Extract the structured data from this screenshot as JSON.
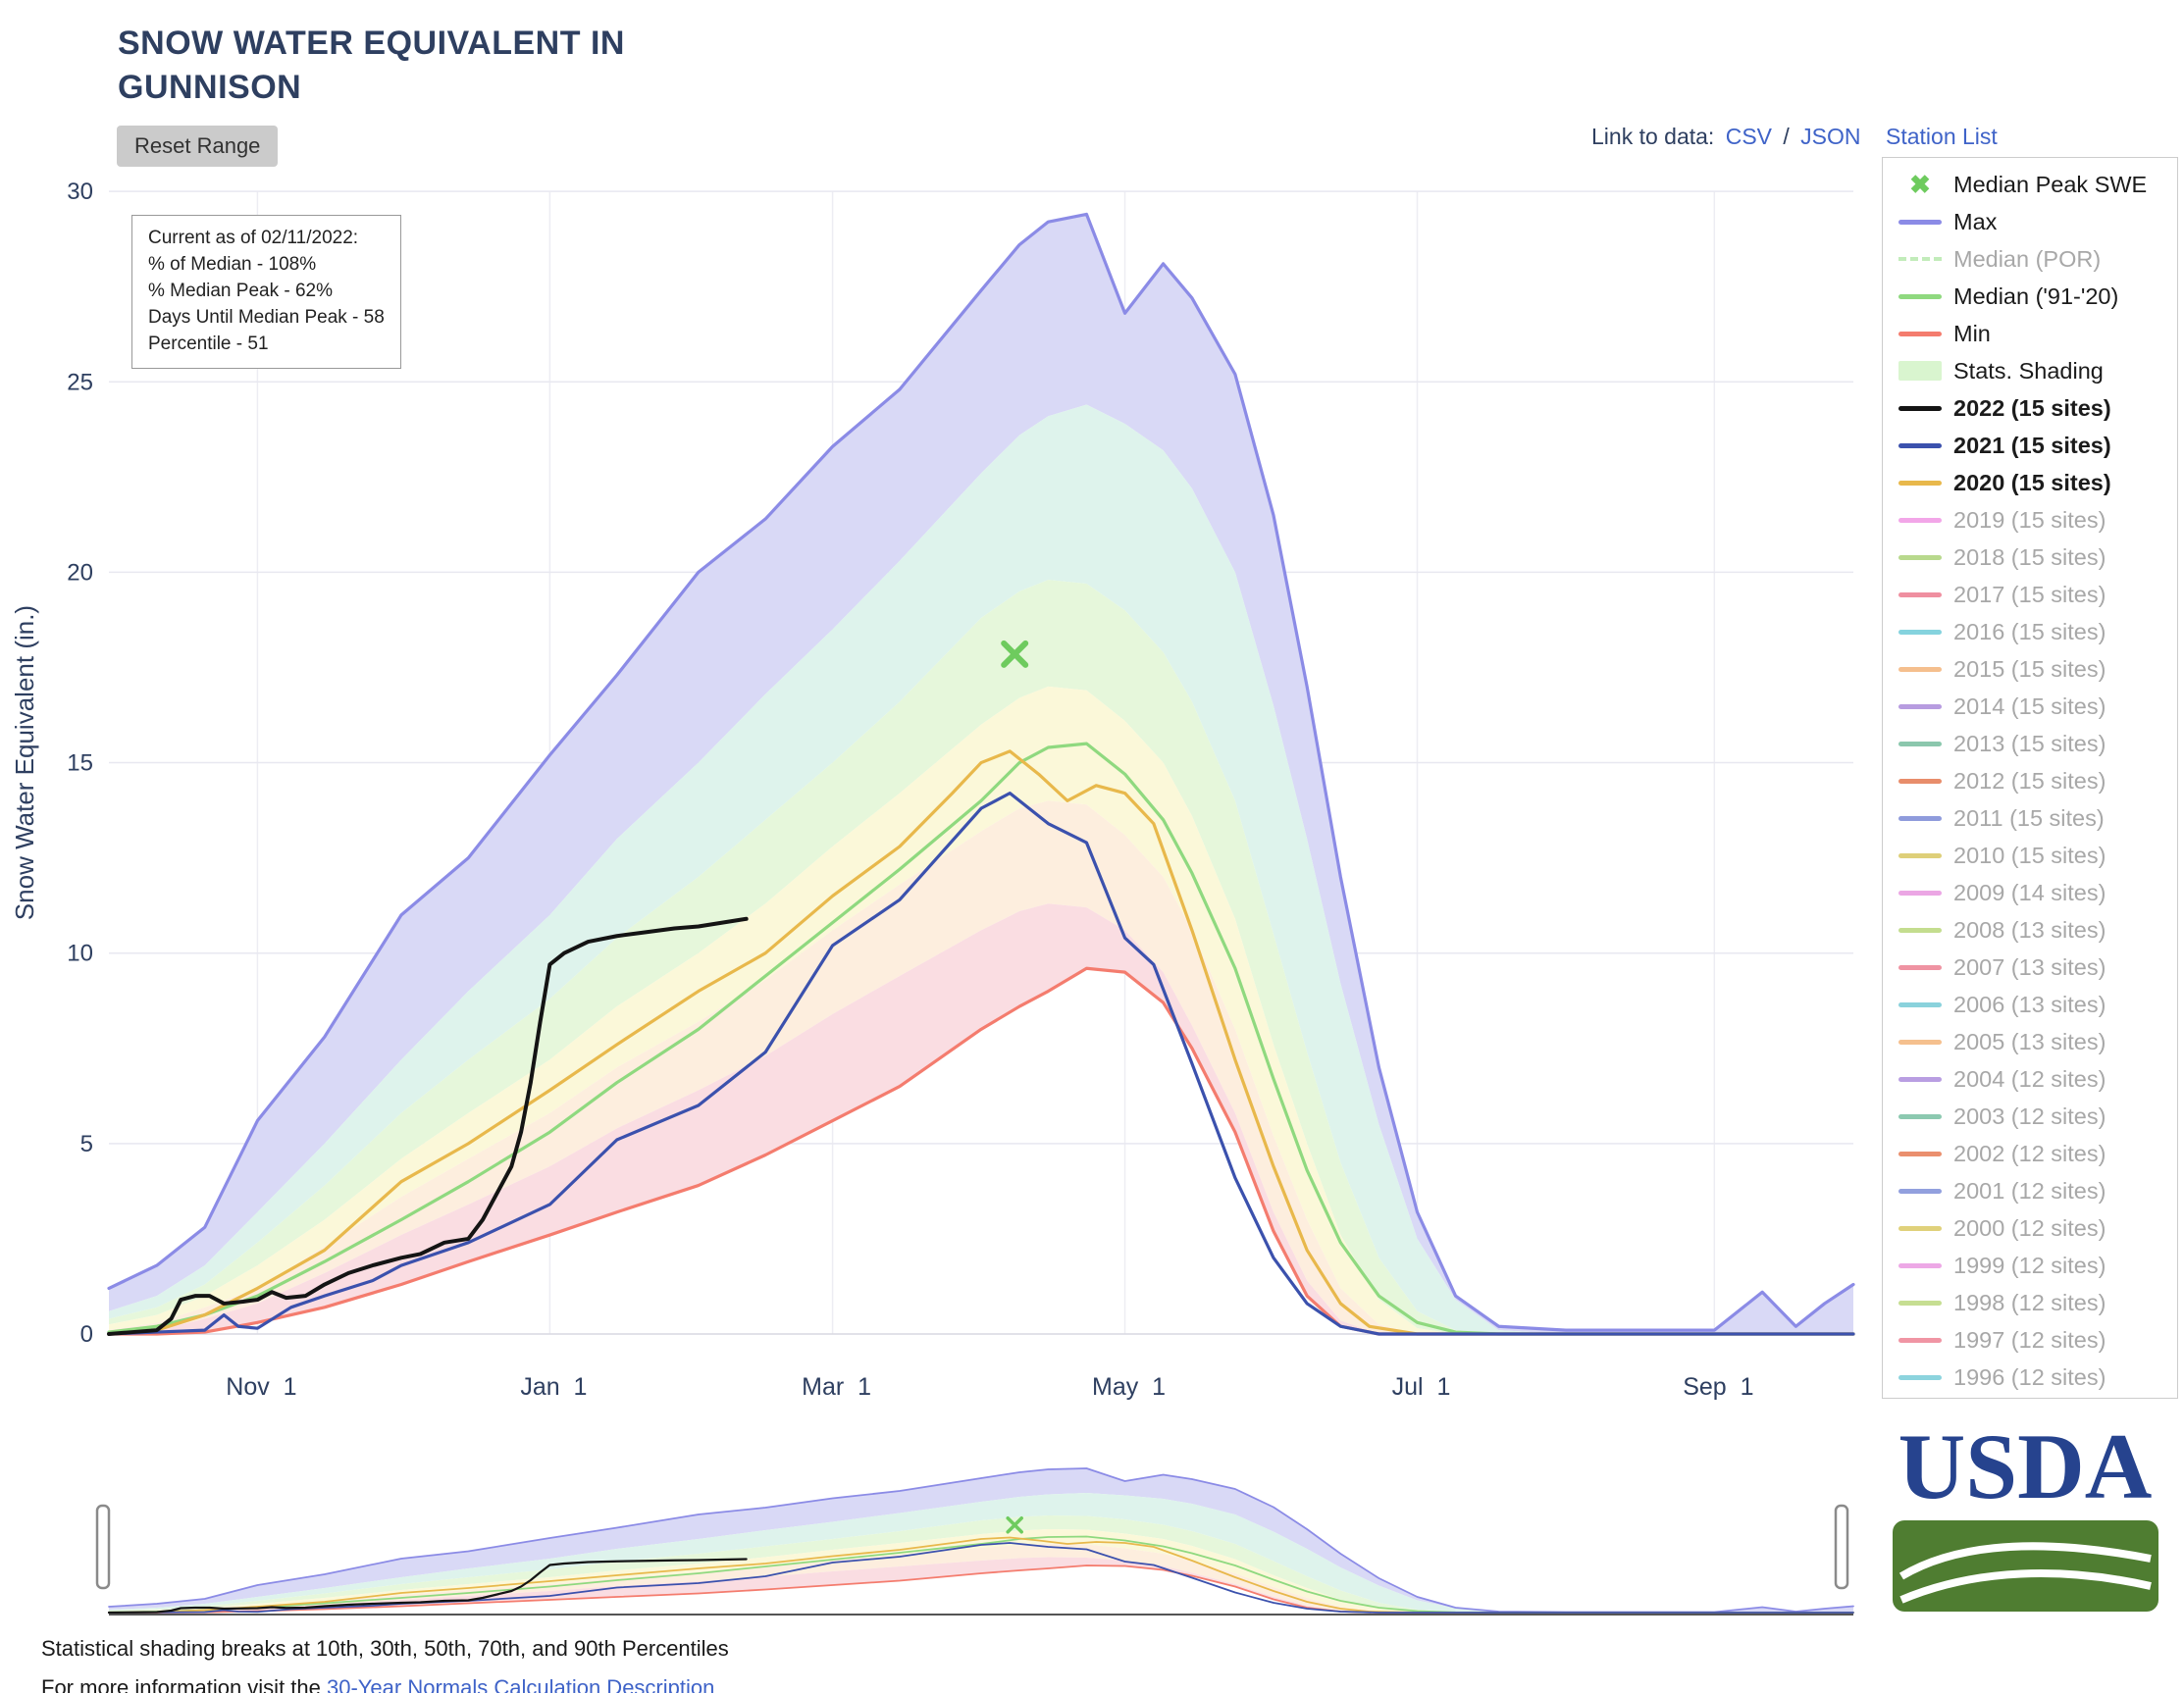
{
  "page": {
    "title_line1": "SNOW WATER EQUIVALENT IN",
    "title_line2": "GUNNISON",
    "reset_button": "Reset Range",
    "link_to_data_label": "Link to data:",
    "csv_link": "CSV",
    "link_separator": "/",
    "json_link": "JSON",
    "station_list": "Station List",
    "caption_line1": "Statistical shading breaks at 10th, 30th, 50th, 70th, and 90th Percentiles",
    "caption_line2_prefix": "For more information visit the ",
    "caption_line2_link": "30-Year Normals Calculation Description",
    "usda_logo_text": "USDA"
  },
  "info_box": {
    "line1": "Current as of 02/11/2022:",
    "line2": "% of Median - 108%",
    "line3": "% Median Peak - 62%",
    "line4": "Days Until Median Peak - 58",
    "line5": "Percentile - 51"
  },
  "colors": {
    "title_text": "#2e3f60",
    "link_blue": "#3f63c8",
    "usda_blue": "#26438e",
    "usda_green": "#4f7d31",
    "legend_inactive_text": "#a8a8a8"
  },
  "legend": {
    "x_glyph": "✖",
    "items": [
      {
        "label": "Median Peak SWE",
        "swatch": "x",
        "color": "#6ecb5e",
        "active": true,
        "bold": false
      },
      {
        "label": "Max",
        "swatch": "line",
        "color": "#8b8be6",
        "active": true,
        "bold": false
      },
      {
        "label": "Median (POR)",
        "swatch": "dash",
        "color": "#c2ecba",
        "active": false,
        "bold": false
      },
      {
        "label": "Median ('91-'20)",
        "swatch": "line",
        "color": "#8fd97f",
        "active": true,
        "bold": false
      },
      {
        "label": "Min",
        "swatch": "line",
        "color": "#f47c6e",
        "active": true,
        "bold": false
      },
      {
        "label": "Stats. Shading",
        "swatch": "box",
        "color": "#d9f5cf",
        "active": true,
        "bold": false
      },
      {
        "label": "2022 (15 sites)",
        "swatch": "line",
        "color": "#141414",
        "active": true,
        "bold": true
      },
      {
        "label": "2021 (15 sites)",
        "swatch": "line",
        "color": "#3b51ad",
        "active": true,
        "bold": true
      },
      {
        "label": "2020 (15 sites)",
        "swatch": "line",
        "color": "#e8b84b",
        "active": true,
        "bold": true
      },
      {
        "label": "2019 (15 sites)",
        "swatch": "line",
        "color": "#f2a6e8",
        "active": false,
        "bold": false
      },
      {
        "label": "2018 (15 sites)",
        "swatch": "line",
        "color": "#b8d98d",
        "active": false,
        "bold": false
      },
      {
        "label": "2017 (15 sites)",
        "swatch": "line",
        "color": "#ef8fa0",
        "active": false,
        "bold": false
      },
      {
        "label": "2016 (15 sites)",
        "swatch": "line",
        "color": "#85d3de",
        "active": false,
        "bold": false
      },
      {
        "label": "2015 (15 sites)",
        "swatch": "line",
        "color": "#f5bf8e",
        "active": false,
        "bold": false
      },
      {
        "label": "2014 (15 sites)",
        "swatch": "line",
        "color": "#b79ce0",
        "active": false,
        "bold": false
      },
      {
        "label": "2013 (15 sites)",
        "swatch": "line",
        "color": "#8bc7ad",
        "active": false,
        "bold": false
      },
      {
        "label": "2012 (15 sites)",
        "swatch": "line",
        "color": "#e88d6b",
        "active": false,
        "bold": false
      },
      {
        "label": "2011 (15 sites)",
        "swatch": "line",
        "color": "#8f9bdc",
        "active": false,
        "bold": false
      },
      {
        "label": "2010 (15 sites)",
        "swatch": "line",
        "color": "#decf79",
        "active": false,
        "bold": false
      },
      {
        "label": "2009 (14 sites)",
        "swatch": "line",
        "color": "#eba6e4",
        "active": false,
        "bold": false
      },
      {
        "label": "2008 (13 sites)",
        "swatch": "line",
        "color": "#c4dd8f",
        "active": false,
        "bold": false
      },
      {
        "label": "2007 (13 sites)",
        "swatch": "line",
        "color": "#ef93a2",
        "active": false,
        "bold": false
      },
      {
        "label": "2006 (13 sites)",
        "swatch": "line",
        "color": "#8ad2dc",
        "active": false,
        "bold": false
      },
      {
        "label": "2005 (13 sites)",
        "swatch": "line",
        "color": "#f5c08e",
        "active": false,
        "bold": false
      },
      {
        "label": "2004 (12 sites)",
        "swatch": "line",
        "color": "#b99ee2",
        "active": false,
        "bold": false
      },
      {
        "label": "2003 (12 sites)",
        "swatch": "line",
        "color": "#8cc9b0",
        "active": false,
        "bold": false
      },
      {
        "label": "2002 (12 sites)",
        "swatch": "line",
        "color": "#ea8f6e",
        "active": false,
        "bold": false
      },
      {
        "label": "2001 (12 sites)",
        "swatch": "line",
        "color": "#92a0de",
        "active": false,
        "bold": false
      },
      {
        "label": "2000 (12 sites)",
        "swatch": "line",
        "color": "#e0d17b",
        "active": false,
        "bold": false
      },
      {
        "label": "1999 (12 sites)",
        "swatch": "line",
        "color": "#eda8e6",
        "active": false,
        "bold": false
      },
      {
        "label": "1998 (12 sites)",
        "swatch": "line",
        "color": "#c6de92",
        "active": false,
        "bold": false
      },
      {
        "label": "1997 (12 sites)",
        "swatch": "line",
        "color": "#f095a4",
        "active": false,
        "bold": false
      },
      {
        "label": "1996 (12 sites)",
        "swatch": "line",
        "color": "#8cd4de",
        "active": false,
        "bold": false
      }
    ]
  },
  "chart_data": {
    "type": "area",
    "title": "Snow Water Equivalent in Gunnison",
    "xlabel": "",
    "ylabel": "Snow Water Equivalent (in.)",
    "ylim": [
      0,
      30
    ],
    "y_ticks": [
      0,
      5,
      10,
      15,
      20,
      25,
      30
    ],
    "x_domain_days": [
      0,
      364
    ],
    "x_ticks": [
      {
        "day": 31,
        "label": "Nov  1"
      },
      {
        "day": 92,
        "label": "Jan  1"
      },
      {
        "day": 151,
        "label": "Mar  1"
      },
      {
        "day": 212,
        "label": "May  1"
      },
      {
        "day": 273,
        "label": "Jul  1"
      },
      {
        "day": 335,
        "label": "Sep  1"
      }
    ],
    "legend_position": "right",
    "grid": true,
    "grid_days": [
      0,
      10,
      20,
      31,
      45,
      61,
      75,
      92,
      106,
      123,
      137,
      151,
      165,
      182,
      190,
      196,
      204,
      212,
      220,
      226,
      235,
      243,
      250,
      257,
      265,
      273,
      281,
      290,
      304,
      320,
      335,
      345,
      352,
      358,
      364
    ],
    "max": [
      1.2,
      1.8,
      2.8,
      5.6,
      7.8,
      11.0,
      12.5,
      15.2,
      17.3,
      20.0,
      21.4,
      23.3,
      24.8,
      27.4,
      28.6,
      29.2,
      29.4,
      26.8,
      28.1,
      27.2,
      25.2,
      21.5,
      17.0,
      12.0,
      7.0,
      3.2,
      1.0,
      0.2,
      0.1,
      0.1,
      0.1,
      1.1,
      0.2,
      0.8,
      1.3
    ],
    "min": [
      0,
      0,
      0.05,
      0.3,
      0.7,
      1.3,
      1.9,
      2.6,
      3.2,
      3.9,
      4.7,
      5.6,
      6.5,
      8.0,
      8.6,
      9.0,
      9.6,
      9.5,
      8.7,
      7.5,
      5.3,
      2.7,
      1.0,
      0.2,
      0,
      0,
      0,
      0,
      0,
      0,
      0,
      0,
      0,
      0,
      0
    ],
    "median_91_20": [
      0.05,
      0.2,
      0.5,
      1.0,
      1.9,
      3.0,
      4.0,
      5.3,
      6.6,
      8.0,
      9.4,
      10.8,
      12.2,
      14.0,
      15.0,
      15.4,
      15.5,
      14.7,
      13.5,
      12.1,
      9.6,
      6.7,
      4.3,
      2.4,
      1.0,
      0.3,
      0.05,
      0,
      0,
      0,
      0,
      0,
      0,
      0,
      0
    ],
    "percentiles": {
      "p90": [
        0.6,
        1.0,
        1.8,
        3.2,
        5.0,
        7.2,
        9.0,
        11.0,
        13.0,
        15.0,
        16.8,
        18.5,
        20.3,
        22.6,
        23.6,
        24.1,
        24.4,
        23.9,
        23.2,
        22.2,
        20.0,
        16.5,
        13.0,
        9.2,
        5.5,
        2.5,
        0.9,
        0.1,
        0,
        0,
        0,
        0,
        0,
        0,
        0
      ],
      "p70": [
        0.4,
        0.7,
        1.3,
        2.4,
        3.9,
        5.8,
        7.2,
        8.8,
        10.4,
        12.0,
        13.5,
        15.0,
        16.6,
        18.8,
        19.5,
        19.8,
        19.7,
        19.0,
        17.9,
        16.6,
        14.0,
        10.5,
        7.4,
        4.5,
        2.0,
        0.6,
        0.1,
        0,
        0,
        0,
        0,
        0,
        0,
        0,
        0
      ],
      "p50": [
        0.25,
        0.5,
        1.0,
        1.8,
        3.0,
        4.6,
        5.8,
        7.2,
        8.6,
        10.0,
        11.3,
        12.8,
        14.2,
        16.0,
        16.7,
        17.0,
        16.9,
        16.1,
        15.0,
        13.6,
        10.9,
        7.6,
        5.0,
        2.6,
        0.9,
        0.15,
        0,
        0,
        0,
        0,
        0,
        0,
        0,
        0,
        0
      ],
      "p30": [
        0.1,
        0.3,
        0.7,
        1.2,
        2.3,
        3.6,
        4.6,
        5.8,
        7.0,
        8.2,
        9.3,
        10.6,
        11.8,
        13.2,
        13.8,
        14.0,
        13.9,
        13.1,
        12.0,
        10.6,
        8.0,
        5.2,
        3.0,
        1.2,
        0.25,
        0,
        0,
        0,
        0,
        0,
        0,
        0,
        0,
        0,
        0
      ],
      "p10": [
        0.02,
        0.1,
        0.4,
        0.8,
        1.6,
        2.6,
        3.4,
        4.4,
        5.4,
        6.4,
        7.3,
        8.4,
        9.4,
        10.6,
        11.1,
        11.3,
        11.2,
        10.6,
        9.5,
        8.1,
        5.8,
        3.2,
        1.4,
        0.35,
        0,
        0,
        0,
        0,
        0,
        0,
        0,
        0,
        0,
        0,
        0
      ]
    },
    "band_fills": [
      {
        "upper": "max",
        "lower": "p90",
        "color": "#d9d9f6"
      },
      {
        "upper": "p90",
        "lower": "p70",
        "color": "#def3ec"
      },
      {
        "upper": "p70",
        "lower": "p50",
        "color": "#e6f7db"
      },
      {
        "upper": "p50",
        "lower": "p30",
        "color": "#fbf8d9"
      },
      {
        "upper": "p30",
        "lower": "p10",
        "color": "#fdeede"
      },
      {
        "upper": "p10",
        "lower": "min",
        "color": "#fadde2"
      }
    ],
    "series_colors": {
      "max": "#8b8be6",
      "min": "#f47c6e",
      "median": "#8fd97f"
    },
    "year_series": [
      {
        "name": "2020",
        "label": "2020 (15 sites)",
        "color": "#e8b84b",
        "width": 3.2,
        "days": [
          0,
          10,
          20,
          31,
          45,
          61,
          75,
          92,
          106,
          123,
          137,
          151,
          165,
          176,
          182,
          188,
          194,
          200,
          206,
          212,
          218,
          226,
          235,
          243,
          250,
          257,
          263,
          273,
          300,
          335,
          364
        ],
        "values": [
          0,
          0.1,
          0.5,
          1.2,
          2.2,
          4.0,
          5.0,
          6.4,
          7.6,
          9.0,
          10.0,
          11.5,
          12.8,
          14.2,
          15.0,
          15.3,
          14.7,
          14.0,
          14.4,
          14.2,
          13.4,
          10.6,
          7.2,
          4.4,
          2.2,
          0.8,
          0.2,
          0,
          0,
          0,
          0
        ]
      },
      {
        "name": "2021",
        "label": "2021 (15 sites)",
        "color": "#3b51ad",
        "width": 3.2,
        "days": [
          0,
          10,
          20,
          24,
          27,
          31,
          38,
          45,
          55,
          61,
          75,
          92,
          106,
          123,
          137,
          151,
          165,
          182,
          188,
          196,
          204,
          212,
          218,
          226,
          235,
          243,
          250,
          257,
          265,
          273,
          300,
          335,
          364
        ],
        "values": [
          0,
          0.05,
          0.1,
          0.5,
          0.2,
          0.15,
          0.7,
          1.0,
          1.4,
          1.8,
          2.4,
          3.4,
          5.1,
          6.0,
          7.4,
          10.2,
          11.4,
          13.8,
          14.2,
          13.4,
          12.9,
          10.4,
          9.7,
          7.1,
          4.1,
          2.0,
          0.8,
          0.2,
          0,
          0,
          0,
          0,
          0
        ]
      },
      {
        "name": "2022",
        "label": "2022 (15 sites)",
        "color": "#141414",
        "width": 4,
        "days": [
          0,
          5,
          10,
          13,
          15,
          18,
          21,
          24,
          28,
          31,
          34,
          37,
          41,
          45,
          50,
          55,
          61,
          65,
          70,
          75,
          78,
          81,
          84,
          86,
          88,
          90,
          92,
          95,
          100,
          106,
          112,
          118,
          123,
          128,
          133
        ],
        "values": [
          0,
          0.05,
          0.1,
          0.4,
          0.9,
          1.0,
          1.0,
          0.8,
          0.85,
          0.9,
          1.1,
          0.95,
          1.0,
          1.3,
          1.6,
          1.8,
          2.0,
          2.1,
          2.4,
          2.5,
          3.0,
          3.7,
          4.4,
          5.3,
          6.6,
          8.2,
          9.7,
          10.0,
          10.3,
          10.45,
          10.55,
          10.65,
          10.7,
          10.8,
          10.9
        ]
      }
    ],
    "median_peak_marker": {
      "label": "Median Peak SWE",
      "day": 189,
      "value": 17.85,
      "color": "#6ecb5e"
    }
  }
}
